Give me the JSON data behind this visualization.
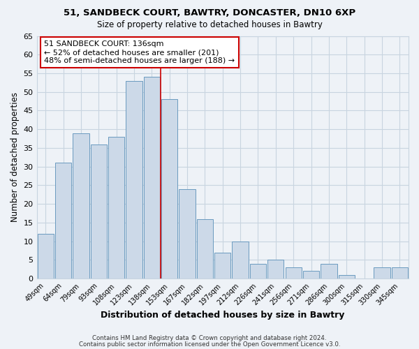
{
  "title1": "51, SANDBECK COURT, BAWTRY, DONCASTER, DN10 6XP",
  "title2": "Size of property relative to detached houses in Bawtry",
  "xlabel": "Distribution of detached houses by size in Bawtry",
  "ylabel": "Number of detached properties",
  "categories": [
    "49sqm",
    "64sqm",
    "79sqm",
    "93sqm",
    "108sqm",
    "123sqm",
    "138sqm",
    "153sqm",
    "167sqm",
    "182sqm",
    "197sqm",
    "212sqm",
    "226sqm",
    "241sqm",
    "256sqm",
    "271sqm",
    "286sqm",
    "300sqm",
    "315sqm",
    "330sqm",
    "345sqm"
  ],
  "values": [
    12,
    31,
    39,
    36,
    38,
    53,
    54,
    48,
    24,
    16,
    7,
    10,
    4,
    5,
    3,
    2,
    4,
    1,
    0,
    3,
    3
  ],
  "bar_color": "#ccd9e8",
  "bar_edge_color": "#6a9abf",
  "highlight_index": 6,
  "highlight_line_color": "#cc0000",
  "annotation_line1": "51 SANDBECK COURT: 136sqm",
  "annotation_line2": "← 52% of detached houses are smaller (201)",
  "annotation_line3": "48% of semi-detached houses are larger (188) →",
  "annotation_box_color": "#ffffff",
  "annotation_box_edge": "#cc0000",
  "ylim": [
    0,
    65
  ],
  "yticks": [
    0,
    5,
    10,
    15,
    20,
    25,
    30,
    35,
    40,
    45,
    50,
    55,
    60,
    65
  ],
  "footer1": "Contains HM Land Registry data © Crown copyright and database right 2024.",
  "footer2": "Contains public sector information licensed under the Open Government Licence v3.0.",
  "grid_color": "#c8d4e0",
  "bg_color": "#eef2f7",
  "plot_bg_color": "#eef2f7"
}
